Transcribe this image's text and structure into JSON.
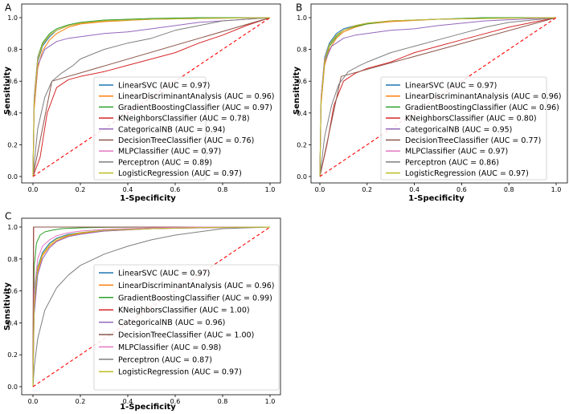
{
  "chart_data": [
    {
      "panel": "A",
      "type": "line",
      "xlabel": "1-Specificity",
      "ylabel": "Sensitivity",
      "xlim": [
        0,
        1
      ],
      "ylim": [
        0,
        1
      ],
      "xticks": [
        "0.0",
        "0.2",
        "0.4",
        "0.6",
        "0.8",
        "1.0"
      ],
      "yticks": [
        "0.0",
        "0.2",
        "0.4",
        "0.6",
        "0.8",
        "1.0"
      ],
      "legend_position": "lower-right",
      "series": [
        {
          "name": "LinearSVC",
          "auc": "0.97",
          "label": "LinearSVC (AUC = 0.97)",
          "color": "#1f77b4",
          "x": [
            0,
            0.005,
            0.02,
            0.04,
            0.07,
            0.1,
            0.15,
            0.2,
            0.3,
            0.5,
            0.7,
            1.0
          ],
          "y": [
            0,
            0.45,
            0.72,
            0.82,
            0.88,
            0.92,
            0.95,
            0.965,
            0.98,
            0.99,
            0.995,
            1.0
          ]
        },
        {
          "name": "LinearDiscriminantAnalysis",
          "auc": "0.96",
          "label": "LinearDiscriminantAnalysis (AUC = 0.96)",
          "color": "#ff7f0e",
          "x": [
            0,
            0.005,
            0.02,
            0.04,
            0.07,
            0.1,
            0.15,
            0.2,
            0.3,
            0.5,
            0.7,
            1.0
          ],
          "y": [
            0,
            0.42,
            0.68,
            0.79,
            0.86,
            0.9,
            0.94,
            0.96,
            0.975,
            0.99,
            0.995,
            1.0
          ]
        },
        {
          "name": "GradientBoostingClassifier",
          "auc": "0.97",
          "label": "GradientBoostingClassifier (AUC = 0.97)",
          "color": "#2ca02c",
          "x": [
            0,
            0.005,
            0.02,
            0.04,
            0.07,
            0.1,
            0.15,
            0.2,
            0.3,
            0.5,
            0.7,
            1.0
          ],
          "y": [
            0,
            0.5,
            0.75,
            0.84,
            0.9,
            0.93,
            0.955,
            0.97,
            0.985,
            0.995,
            1.0,
            1.0
          ]
        },
        {
          "name": "KNeighborsClassifier",
          "auc": "0.78",
          "label": "KNeighborsClassifier (AUC = 0.78)",
          "color": "#d62728",
          "x": [
            0,
            0.03,
            0.06,
            0.1,
            0.15,
            0.2,
            0.3,
            0.4,
            0.5,
            0.6,
            0.7,
            0.8,
            0.9,
            1.0
          ],
          "y": [
            0,
            0.12,
            0.4,
            0.56,
            0.61,
            0.63,
            0.66,
            0.7,
            0.74,
            0.78,
            0.84,
            0.89,
            0.95,
            1.0
          ]
        },
        {
          "name": "CategoricalNB",
          "auc": "0.94",
          "label": "CategoricalNB (AUC = 0.94)",
          "color": "#9467bd",
          "x": [
            0,
            0.005,
            0.02,
            0.05,
            0.1,
            0.15,
            0.2,
            0.3,
            0.4,
            0.5,
            0.7,
            1.0
          ],
          "y": [
            0,
            0.45,
            0.7,
            0.8,
            0.85,
            0.87,
            0.88,
            0.9,
            0.91,
            0.93,
            0.97,
            1.0
          ]
        },
        {
          "name": "DecisionTreeClassifier",
          "auc": "0.76",
          "label": "DecisionTreeClassifier (AUC = 0.76)",
          "color": "#8c564b",
          "x": [
            0,
            0.08,
            1.0
          ],
          "y": [
            0,
            0.6,
            1.0
          ]
        },
        {
          "name": "MLPClassifier",
          "auc": "0.97",
          "label": "MLPClassifier (AUC = 0.97)",
          "color": "#e377c2",
          "x": [
            0,
            0.005,
            0.02,
            0.04,
            0.07,
            0.1,
            0.15,
            0.2,
            0.3,
            0.5,
            0.7,
            1.0
          ],
          "y": [
            0,
            0.5,
            0.74,
            0.83,
            0.89,
            0.92,
            0.95,
            0.965,
            0.98,
            0.99,
            0.995,
            1.0
          ]
        },
        {
          "name": "Perceptron",
          "auc": "0.89",
          "label": "Perceptron (AUC = 0.89)",
          "color": "#7f7f7f",
          "x": [
            0,
            0.02,
            0.05,
            0.08,
            0.12,
            0.17,
            0.2,
            0.3,
            0.4,
            0.5,
            0.6,
            0.7,
            0.8,
            1.0
          ],
          "y": [
            0,
            0.3,
            0.5,
            0.6,
            0.65,
            0.7,
            0.74,
            0.8,
            0.84,
            0.87,
            0.92,
            0.95,
            0.98,
            1.0
          ]
        },
        {
          "name": "LogisticRegression",
          "auc": "0.97",
          "label": "LogisticRegression (AUC = 0.97)",
          "color": "#bcbd22",
          "x": [
            0,
            0.005,
            0.02,
            0.04,
            0.07,
            0.1,
            0.15,
            0.2,
            0.3,
            0.5,
            0.7,
            1.0
          ],
          "y": [
            0,
            0.47,
            0.73,
            0.83,
            0.89,
            0.92,
            0.95,
            0.965,
            0.98,
            0.99,
            0.995,
            1.0
          ]
        }
      ],
      "reference_line": {
        "x": [
          0,
          1
        ],
        "y": [
          0,
          1
        ],
        "color": "#ff0000",
        "style": "dashed"
      }
    },
    {
      "panel": "B",
      "type": "line",
      "xlabel": "1-Specificity",
      "ylabel": "Sensitivity",
      "xlim": [
        0,
        1
      ],
      "ylim": [
        0,
        1
      ],
      "xticks": [
        "0.0",
        "0.2",
        "0.4",
        "0.6",
        "0.8",
        "1.0"
      ],
      "yticks": [
        "0.0",
        "0.2",
        "0.4",
        "0.6",
        "0.8",
        "1.0"
      ],
      "legend_position": "lower-right",
      "series": [
        {
          "name": "LinearSVC",
          "auc": "0.97",
          "label": "LinearSVC (AUC = 0.97)",
          "color": "#1f77b4",
          "x": [
            0,
            0.005,
            0.02,
            0.04,
            0.07,
            0.1,
            0.15,
            0.2,
            0.3,
            0.5,
            0.7,
            1.0
          ],
          "y": [
            0,
            0.5,
            0.75,
            0.84,
            0.9,
            0.93,
            0.95,
            0.965,
            0.98,
            0.99,
            1.0,
            1.0
          ]
        },
        {
          "name": "LinearDiscriminantAnalysis",
          "auc": "0.96",
          "label": "LinearDiscriminantAnalysis (AUC = 0.96)",
          "color": "#ff7f0e",
          "x": [
            0,
            0.005,
            0.02,
            0.04,
            0.07,
            0.1,
            0.15,
            0.2,
            0.3,
            0.5,
            0.7,
            1.0
          ],
          "y": [
            0,
            0.45,
            0.7,
            0.8,
            0.87,
            0.91,
            0.94,
            0.96,
            0.975,
            0.99,
            0.995,
            1.0
          ]
        },
        {
          "name": "GradientBoostingClassifier",
          "auc": "0.96",
          "label": "GradientBoostingClassifier (AUC = 0.96)",
          "color": "#2ca02c",
          "x": [
            0,
            0.005,
            0.02,
            0.04,
            0.07,
            0.1,
            0.15,
            0.2,
            0.3,
            0.5,
            0.7,
            1.0
          ],
          "y": [
            0,
            0.48,
            0.72,
            0.82,
            0.88,
            0.92,
            0.945,
            0.96,
            0.98,
            0.99,
            1.0,
            1.0
          ]
        },
        {
          "name": "KNeighborsClassifier",
          "auc": "0.80",
          "label": "KNeighborsClassifier (AUC = 0.80)",
          "color": "#d62728",
          "x": [
            0,
            0.03,
            0.06,
            0.1,
            0.15,
            0.2,
            0.3,
            0.4,
            0.5,
            0.6,
            0.7,
            0.8,
            0.9,
            1.0
          ],
          "y": [
            0,
            0.2,
            0.45,
            0.6,
            0.65,
            0.68,
            0.72,
            0.78,
            0.82,
            0.86,
            0.9,
            0.94,
            0.97,
            1.0
          ]
        },
        {
          "name": "CategoricalNB",
          "auc": "0.95",
          "label": "CategoricalNB (AUC = 0.95)",
          "color": "#9467bd",
          "x": [
            0,
            0.005,
            0.02,
            0.05,
            0.1,
            0.15,
            0.2,
            0.3,
            0.4,
            0.5,
            0.7,
            1.0
          ],
          "y": [
            0,
            0.48,
            0.72,
            0.82,
            0.87,
            0.89,
            0.9,
            0.92,
            0.93,
            0.95,
            0.98,
            1.0
          ]
        },
        {
          "name": "DecisionTreeClassifier",
          "auc": "0.77",
          "label": "DecisionTreeClassifier (AUC = 0.77)",
          "color": "#8c564b",
          "x": [
            0,
            0.09,
            1.0
          ],
          "y": [
            0,
            0.63,
            1.0
          ]
        },
        {
          "name": "MLPClassifier",
          "auc": "0.97",
          "label": "MLPClassifier (AUC = 0.97)",
          "color": "#e377c2",
          "x": [
            0,
            0.005,
            0.02,
            0.04,
            0.07,
            0.1,
            0.15,
            0.2,
            0.3,
            0.5,
            0.7,
            1.0
          ],
          "y": [
            0,
            0.5,
            0.74,
            0.83,
            0.89,
            0.92,
            0.95,
            0.965,
            0.98,
            0.99,
            0.995,
            1.0
          ]
        },
        {
          "name": "Perceptron",
          "auc": "0.86",
          "label": "Perceptron (AUC = 0.86)",
          "color": "#7f7f7f",
          "x": [
            0,
            0.02,
            0.05,
            0.08,
            0.12,
            0.17,
            0.2,
            0.3,
            0.4,
            0.5,
            0.6,
            0.7,
            0.8,
            1.0
          ],
          "y": [
            0,
            0.25,
            0.45,
            0.58,
            0.66,
            0.7,
            0.72,
            0.78,
            0.82,
            0.86,
            0.9,
            0.94,
            0.97,
            1.0
          ]
        },
        {
          "name": "LogisticRegression",
          "auc": "0.97",
          "label": "LogisticRegression (AUC = 0.97)",
          "color": "#bcbd22",
          "x": [
            0,
            0.005,
            0.02,
            0.04,
            0.07,
            0.1,
            0.15,
            0.2,
            0.3,
            0.5,
            0.7,
            1.0
          ],
          "y": [
            0,
            0.47,
            0.73,
            0.83,
            0.89,
            0.92,
            0.95,
            0.965,
            0.98,
            0.99,
            0.995,
            1.0
          ]
        }
      ],
      "reference_line": {
        "x": [
          0,
          1
        ],
        "y": [
          0,
          1
        ],
        "color": "#ff0000",
        "style": "dashed"
      }
    },
    {
      "panel": "C",
      "type": "line",
      "xlabel": "1-Specificity",
      "ylabel": "Sensitivity",
      "xlim": [
        0,
        1
      ],
      "ylim": [
        0,
        1
      ],
      "xticks": [
        "0.0",
        "0.2",
        "0.4",
        "0.6",
        "0.8",
        "1.0"
      ],
      "yticks": [
        "0.0",
        "0.2",
        "0.4",
        "0.6",
        "0.8",
        "1.0"
      ],
      "legend_position": "lower-right",
      "series": [
        {
          "name": "LinearSVC",
          "auc": "0.97",
          "label": "LinearSVC (AUC = 0.97)",
          "color": "#1f77b4",
          "x": [
            0,
            0.005,
            0.02,
            0.04,
            0.07,
            0.1,
            0.15,
            0.2,
            0.3,
            0.5,
            0.7,
            1.0
          ],
          "y": [
            0,
            0.55,
            0.75,
            0.84,
            0.9,
            0.93,
            0.955,
            0.965,
            0.98,
            0.99,
            0.997,
            1.0
          ]
        },
        {
          "name": "LinearDiscriminantAnalysis",
          "auc": "0.96",
          "label": "LinearDiscriminantAnalysis (AUC = 0.96)",
          "color": "#ff7f0e",
          "x": [
            0,
            0.005,
            0.02,
            0.04,
            0.07,
            0.1,
            0.15,
            0.2,
            0.3,
            0.5,
            0.7,
            1.0
          ],
          "y": [
            0,
            0.5,
            0.72,
            0.82,
            0.88,
            0.915,
            0.945,
            0.96,
            0.975,
            0.99,
            0.995,
            1.0
          ]
        },
        {
          "name": "GradientBoostingClassifier",
          "auc": "0.99",
          "label": "GradientBoostingClassifier (AUC = 0.99)",
          "color": "#2ca02c",
          "x": [
            0,
            0.005,
            0.015,
            0.03,
            0.05,
            0.08,
            0.12,
            0.2,
            0.3,
            0.5,
            1.0
          ],
          "y": [
            0,
            0.75,
            0.9,
            0.95,
            0.97,
            0.98,
            0.99,
            0.995,
            0.998,
            1.0,
            1.0
          ]
        },
        {
          "name": "KNeighborsClassifier",
          "auc": "1.00",
          "label": "KNeighborsClassifier (AUC = 1.00)",
          "color": "#d62728",
          "x": [
            0,
            0.003,
            1.0
          ],
          "y": [
            0,
            1.0,
            1.0
          ]
        },
        {
          "name": "CategoricalNB",
          "auc": "0.96",
          "label": "CategoricalNB (AUC = 0.96)",
          "color": "#9467bd",
          "x": [
            0,
            0.005,
            0.02,
            0.04,
            0.07,
            0.1,
            0.15,
            0.2,
            0.3,
            0.5,
            0.7,
            1.0
          ],
          "y": [
            0,
            0.45,
            0.7,
            0.8,
            0.87,
            0.91,
            0.94,
            0.955,
            0.975,
            0.99,
            0.995,
            1.0
          ]
        },
        {
          "name": "DecisionTreeClassifier",
          "auc": "1.00",
          "label": "DecisionTreeClassifier (AUC = 1.00)",
          "color": "#8c564b",
          "x": [
            0,
            0.002,
            1.0
          ],
          "y": [
            0,
            1.0,
            1.0
          ]
        },
        {
          "name": "MLPClassifier",
          "auc": "0.98",
          "label": "MLPClassifier (AUC = 0.98)",
          "color": "#e377c2",
          "x": [
            0,
            0.005,
            0.02,
            0.04,
            0.07,
            0.1,
            0.15,
            0.2,
            0.3,
            0.5,
            0.7,
            1.0
          ],
          "y": [
            0,
            0.6,
            0.8,
            0.88,
            0.92,
            0.945,
            0.965,
            0.975,
            0.985,
            0.995,
            1.0,
            1.0
          ]
        },
        {
          "name": "Perceptron",
          "auc": "0.87",
          "label": "Perceptron (AUC = 0.87)",
          "color": "#7f7f7f",
          "x": [
            0,
            0.005,
            0.02,
            0.05,
            0.1,
            0.15,
            0.2,
            0.3,
            0.4,
            0.5,
            0.6,
            0.7,
            0.8,
            1.0
          ],
          "y": [
            0,
            0.12,
            0.3,
            0.48,
            0.62,
            0.7,
            0.76,
            0.83,
            0.88,
            0.92,
            0.95,
            0.97,
            0.99,
            1.0
          ]
        },
        {
          "name": "LogisticRegression",
          "auc": "0.97",
          "label": "LogisticRegression (AUC = 0.97)",
          "color": "#bcbd22",
          "x": [
            0,
            0.005,
            0.02,
            0.04,
            0.07,
            0.1,
            0.15,
            0.2,
            0.3,
            0.5,
            0.7,
            1.0
          ],
          "y": [
            0,
            0.52,
            0.74,
            0.83,
            0.89,
            0.925,
            0.95,
            0.965,
            0.98,
            0.99,
            0.997,
            1.0
          ]
        }
      ],
      "reference_line": {
        "x": [
          0,
          1
        ],
        "y": [
          0,
          1
        ],
        "color": "#ff0000",
        "style": "dashed"
      }
    }
  ]
}
